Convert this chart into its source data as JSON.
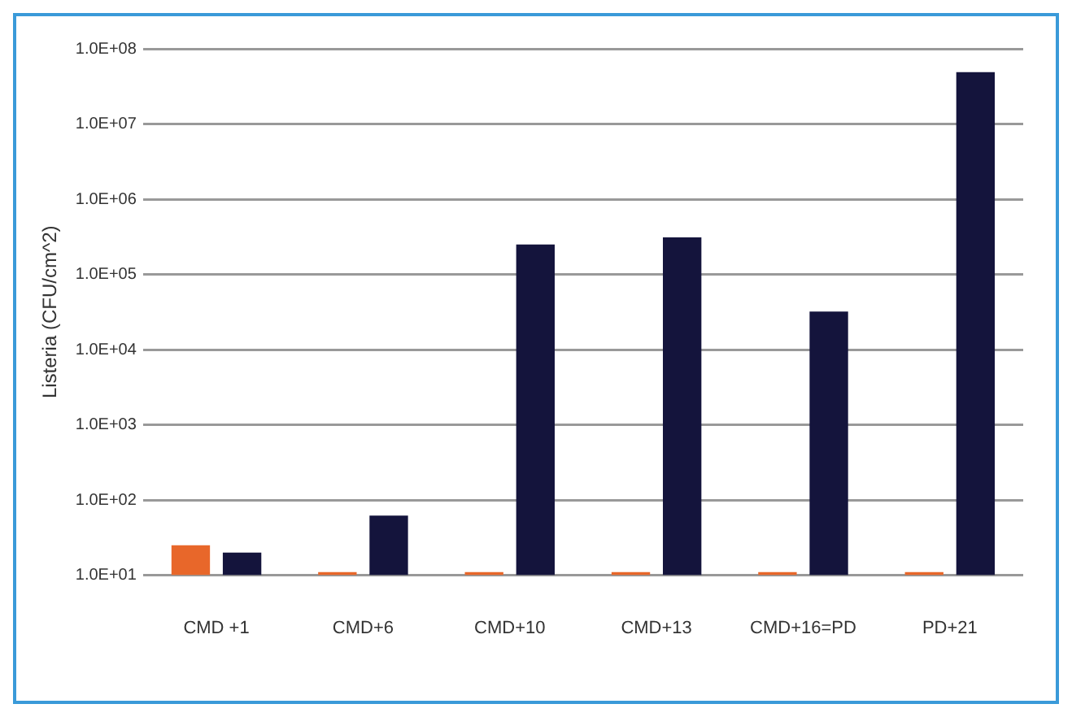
{
  "chart_data": {
    "type": "bar",
    "ylabel": "Listeria (CFU/cm^2)",
    "categories": [
      "CMD +1",
      "CMD+6",
      "CMD+10",
      "CMD+13",
      "CMD+16=PD",
      "PD+21"
    ],
    "series": [
      {
        "color": "#e8672a",
        "values": [
          25,
          11,
          11,
          11,
          11,
          11
        ]
      },
      {
        "color": "#14143c",
        "values": [
          20,
          62,
          250000,
          310000,
          32000,
          49000000
        ]
      }
    ],
    "log": true,
    "ylim": [
      10,
      100000000
    ],
    "yticks": [
      {
        "value": 10,
        "label": "1.0E+01"
      },
      {
        "value": 100,
        "label": "1.0E+02"
      },
      {
        "value": 1000,
        "label": "1.0E+03"
      },
      {
        "value": 10000,
        "label": "1.0E+04"
      },
      {
        "value": 100000,
        "label": "1.0E+05"
      },
      {
        "value": 1000000,
        "label": "1.0E+06"
      },
      {
        "value": 10000000,
        "label": "1.0E+07"
      },
      {
        "value": 100000000,
        "label": "1.0E+08"
      }
    ],
    "grid": "y",
    "legend": false
  }
}
